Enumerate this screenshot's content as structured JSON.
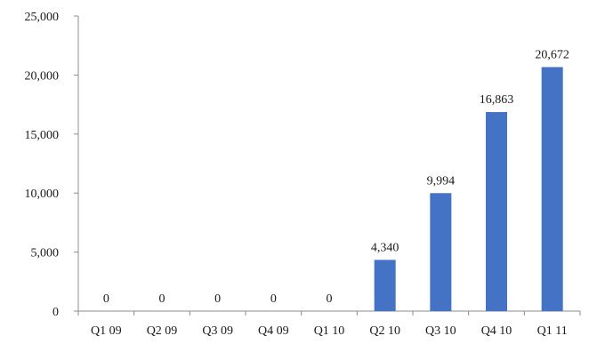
{
  "chart_data": {
    "type": "bar",
    "title": "",
    "xlabel": "",
    "ylabel": "",
    "categories": [
      "Q1 09",
      "Q2 09",
      "Q3 09",
      "Q4 09",
      "Q1 10",
      "Q2 10",
      "Q3 10",
      "Q4 10",
      "Q1 11"
    ],
    "values": [
      0,
      0,
      0,
      0,
      0,
      4340,
      9994,
      16863,
      20672
    ],
    "value_labels": [
      "0",
      "0",
      "0",
      "0",
      "0",
      "4,340",
      "9,994",
      "16,863",
      "20,672"
    ],
    "ylim": [
      0,
      25000
    ],
    "yticks": [
      0,
      5000,
      10000,
      15000,
      20000,
      25000
    ],
    "ytick_labels": [
      "0",
      "5,000",
      "10,000",
      "15,000",
      "20,000",
      "25,000"
    ],
    "grid": false,
    "legend": "none",
    "bar_color": "#4472c4"
  }
}
